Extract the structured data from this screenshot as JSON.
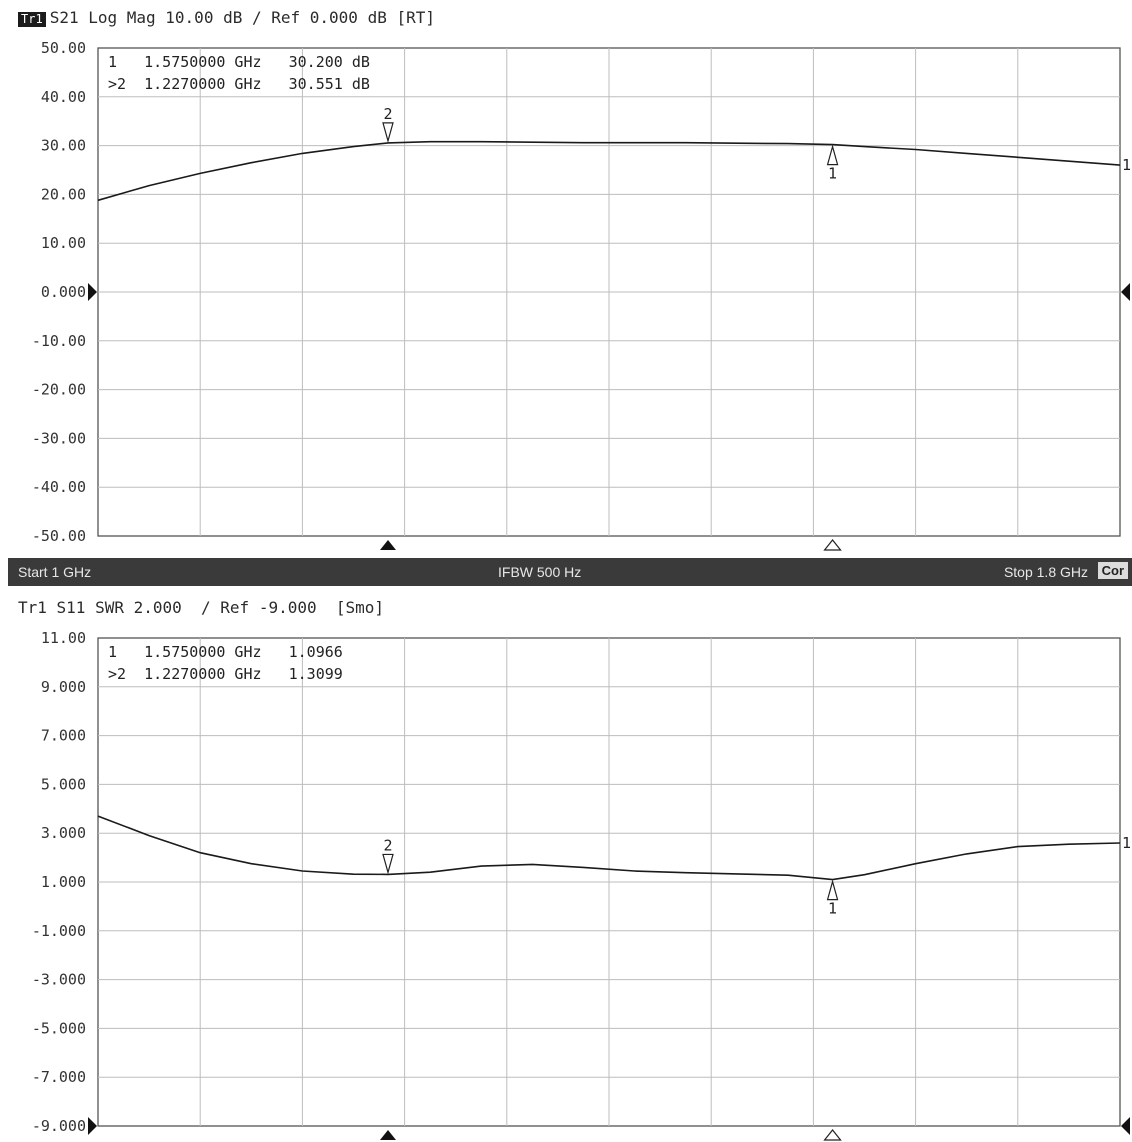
{
  "top_header": {
    "badge": "Tr1",
    "text": "S21 Log Mag 10.00 dB / Ref 0.000 dB [RT]"
  },
  "status_bar": {
    "start": "Start 1 GHz",
    "ifbw": "IFBW 500 Hz",
    "stop": "Stop 1.8 GHz",
    "cor": "Cor"
  },
  "bottom_header": {
    "text": "Tr1 S11 SWR 2.000  / Ref -9.000  [Smo]"
  },
  "chart_data": [
    {
      "type": "line",
      "title": "S21 Log Mag 10.00 dB / Ref 0.000 dB [RT]",
      "xlabel": "",
      "ylabel": "",
      "xlim": [
        1.0,
        1.8
      ],
      "ylim": [
        -50,
        50
      ],
      "grid": true,
      "y_tick_labels": [
        "50.00",
        "40.00",
        "30.00",
        "20.00",
        "10.00",
        "0.000",
        "-10.00",
        "-20.00",
        "-30.00",
        "-40.00",
        "-50.00"
      ],
      "ref_level": 0,
      "series": [
        {
          "x": [
            1.0,
            1.04,
            1.08,
            1.12,
            1.16,
            1.2,
            1.227,
            1.26,
            1.3,
            1.34,
            1.38,
            1.42,
            1.46,
            1.5,
            1.54,
            1.575,
            1.6,
            1.64,
            1.68,
            1.72,
            1.76,
            1.8
          ],
          "values": [
            18.8,
            21.8,
            24.3,
            26.5,
            28.4,
            29.8,
            30.55,
            30.8,
            30.8,
            30.7,
            30.6,
            30.6,
            30.6,
            30.5,
            30.4,
            30.2,
            29.8,
            29.2,
            28.4,
            27.6,
            26.8,
            26.0
          ]
        }
      ],
      "markers": [
        {
          "id": "1",
          "x": 1.575,
          "y": 30.2,
          "readout": "1   1.5750000 GHz   30.200 dB"
        },
        {
          "id": "2",
          "x": 1.227,
          "y": 30.551,
          "readout": ">2  1.2270000 GHz   30.551 dB"
        }
      ]
    },
    {
      "type": "line",
      "title": "Tr1 S11 SWR 2.000  / Ref -9.000  [Smo]",
      "xlabel": "",
      "ylabel": "",
      "xlim": [
        1.0,
        1.8
      ],
      "ylim": [
        -9,
        11
      ],
      "grid": true,
      "y_tick_labels": [
        "11.00",
        "9.000",
        "7.000",
        "5.000",
        "3.000",
        "1.000",
        "-1.000",
        "-3.000",
        "-5.000",
        "-7.000",
        "-9.000"
      ],
      "ref_level": -9,
      "series": [
        {
          "x": [
            1.0,
            1.04,
            1.08,
            1.12,
            1.16,
            1.2,
            1.227,
            1.26,
            1.3,
            1.34,
            1.38,
            1.42,
            1.46,
            1.5,
            1.54,
            1.575,
            1.6,
            1.64,
            1.68,
            1.72,
            1.76,
            1.8
          ],
          "values": [
            3.7,
            2.9,
            2.2,
            1.75,
            1.45,
            1.32,
            1.31,
            1.4,
            1.65,
            1.72,
            1.6,
            1.45,
            1.38,
            1.33,
            1.28,
            1.1,
            1.3,
            1.75,
            2.15,
            2.45,
            2.55,
            2.6
          ]
        }
      ],
      "markers": [
        {
          "id": "1",
          "x": 1.575,
          "y": 1.0966,
          "readout": "1   1.5750000 GHz   1.0966"
        },
        {
          "id": "2",
          "x": 1.227,
          "y": 1.3099,
          "readout": ">2  1.2270000 GHz   1.3099"
        }
      ]
    }
  ]
}
